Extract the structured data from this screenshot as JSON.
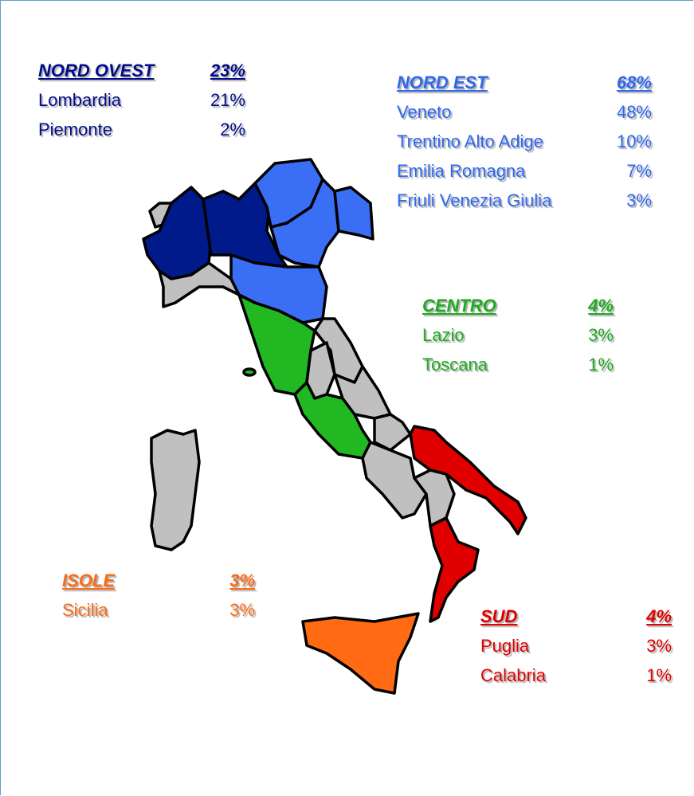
{
  "groups": [
    {
      "title": "NORD OVEST",
      "total": "23%",
      "regions": [
        {
          "name": "Lombardia",
          "share": "21%"
        },
        {
          "name": "Piemonte",
          "share": "2%"
        }
      ]
    },
    {
      "title": "NORD EST",
      "total": "68%",
      "regions": [
        {
          "name": "Veneto",
          "share": "48%"
        },
        {
          "name": "Trentino Alto Adige",
          "share": "10%"
        },
        {
          "name": "Emilia Romagna",
          "share": "7%"
        },
        {
          "name": "Friuli Venezia Giulia",
          "share": "3%"
        }
      ]
    },
    {
      "title": "CENTRO",
      "total": "4%",
      "regions": [
        {
          "name": "Lazio",
          "share": "3%"
        },
        {
          "name": "Toscana",
          "share": "1%"
        }
      ]
    },
    {
      "title": "ISOLE",
      "total": "3%",
      "regions": [
        {
          "name": "Sicilia",
          "share": "3%"
        }
      ]
    },
    {
      "title": "SUD",
      "total": "4%",
      "regions": [
        {
          "name": "Puglia",
          "share": "3%"
        },
        {
          "name": "Calabria",
          "share": "1%"
        }
      ]
    }
  ]
}
